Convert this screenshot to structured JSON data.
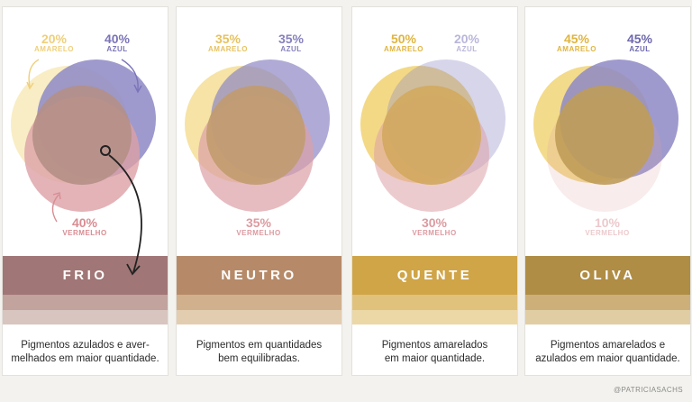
{
  "colors": {
    "yellow": "#f2d77f",
    "blue": "#8d88c4",
    "red": "#dca0a6"
  },
  "cards": [
    {
      "id": "frio",
      "title": "FRIO",
      "labels": {
        "amarelo": {
          "pct": "20%",
          "name": "AMARELO",
          "color": "#efcf7a"
        },
        "azul": {
          "pct": "40%",
          "name": "AZUL",
          "color": "#7a74b8"
        },
        "vermelho": {
          "pct": "40%",
          "name": "VERMELHO",
          "color": "#d98c92"
        }
      },
      "opacity": {
        "yellow": 0.45,
        "blue": 0.85,
        "red": 0.8
      },
      "overlap_color": "#b58f86",
      "band_colors": [
        "#a17676",
        "#c2a39e",
        "#d8c5c0"
      ],
      "description": [
        "Pigmentos azulados e aver-",
        "melhados em maior quantidade."
      ]
    },
    {
      "id": "neutro",
      "title": "NEUTRO",
      "labels": {
        "amarelo": {
          "pct": "35%",
          "name": "AMARELO",
          "color": "#e7c25f"
        },
        "azul": {
          "pct": "35%",
          "name": "AZUL",
          "color": "#8681bd"
        },
        "vermelho": {
          "pct": "35%",
          "name": "VERMELHO",
          "color": "#dc9aa0"
        }
      },
      "opacity": {
        "yellow": 0.7,
        "blue": 0.7,
        "red": 0.7
      },
      "overlap_color": "#c19b6f",
      "band_colors": [
        "#b68a68",
        "#d1b08d",
        "#e3cdb0"
      ],
      "description": [
        "Pigmentos em quantidades",
        "bem equilibradas."
      ]
    },
    {
      "id": "quente",
      "title": "QUENTE",
      "labels": {
        "amarelo": {
          "pct": "50%",
          "name": "AMARELO",
          "color": "#e0b53f"
        },
        "azul": {
          "pct": "20%",
          "name": "AZUL",
          "color": "#b9b6da"
        },
        "vermelho": {
          "pct": "30%",
          "name": "VERMELHO",
          "color": "#dc9aa0"
        }
      },
      "opacity": {
        "yellow": 0.95,
        "blue": 0.35,
        "red": 0.55
      },
      "overlap_color": "#d2a95e",
      "band_colors": [
        "#d0a548",
        "#e1c27c",
        "#ecd7a6"
      ],
      "description": [
        "Pigmentos amarelados",
        "em maior quantidade."
      ]
    },
    {
      "id": "oliva",
      "title": "OLIVA",
      "labels": {
        "amarelo": {
          "pct": "45%",
          "name": "AMARELO",
          "color": "#e0b53f"
        },
        "azul": {
          "pct": "45%",
          "name": "AZUL",
          "color": "#6d68ad"
        },
        "vermelho": {
          "pct": "10%",
          "name": "VERMELHO",
          "color": "#ecc9cc"
        }
      },
      "opacity": {
        "yellow": 0.9,
        "blue": 0.85,
        "red": 0.2
      },
      "overlap_color": "#bf9c58",
      "band_colors": [
        "#b08d45",
        "#cdb079",
        "#e0cda4"
      ],
      "description": [
        "Pigmentos amarelados e",
        "azulados em maior quantidade."
      ]
    }
  ],
  "credit": "@PATRICIASACHS"
}
